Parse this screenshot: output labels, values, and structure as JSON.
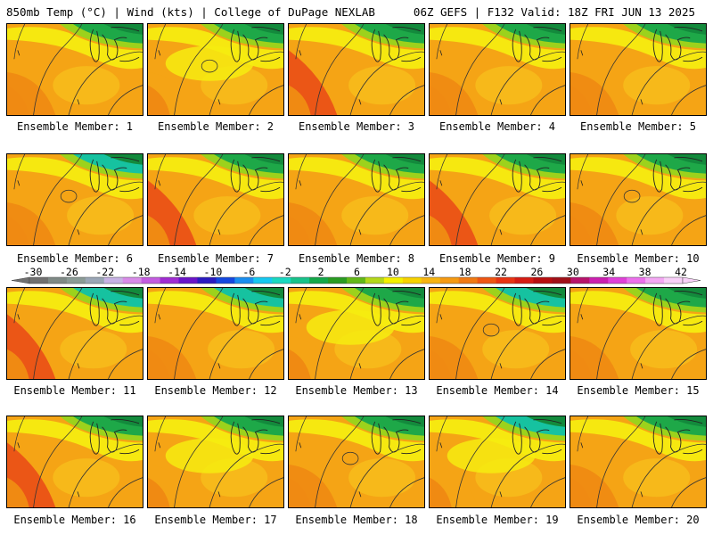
{
  "header": {
    "left": "850mb Temp (°C) | Wind (kts) | College of DuPage NEXLAB",
    "right": "06Z GEFS | F132 Valid: 18Z FRI JUN 13 2025"
  },
  "colorbar": {
    "ticks": [
      "-30",
      "-26",
      "-22",
      "-18",
      "-14",
      "-10",
      "-6",
      "-2",
      "2",
      "6",
      "10",
      "14",
      "18",
      "22",
      "26",
      "30",
      "34",
      "38",
      "42"
    ],
    "colors": [
      "#707070",
      "#7f8a86",
      "#8b9b96",
      "#9aa6b6",
      "#c7b2e4",
      "#d88be8",
      "#c35ce0",
      "#a02cd2",
      "#6a14c8",
      "#2a1bc0",
      "#1448e0",
      "#1a8ef0",
      "#16c8f0",
      "#1ad8c0",
      "#18c28a",
      "#14a84a",
      "#2a9c22",
      "#62b818",
      "#b4d81a",
      "#f4f000",
      "#f6d200",
      "#f6b410",
      "#f59a12",
      "#f07a14",
      "#ee5614",
      "#e83414",
      "#d61c14",
      "#b80e10",
      "#a01018",
      "#b8146c",
      "#cc20b0",
      "#e040d8",
      "#ec70ec",
      "#f4a8f4",
      "#f8d0f8"
    ]
  },
  "panel_colors": {
    "deep_orange": "#f08a12",
    "orange": "#f5a415",
    "light_orange": "#f8be1c",
    "yellow": "#f6ec10",
    "red": "#ea4e16",
    "green": "#1ea848",
    "dark_green": "#138a3c",
    "teal": "#16c2a0",
    "lightgreen": "#9cd21c"
  },
  "members": [
    {
      "label": "Ensemble Member: 1",
      "north": "green",
      "heat": "moderate"
    },
    {
      "label": "Ensemble Member: 2",
      "north": "green",
      "heat": "mild"
    },
    {
      "label": "Ensemble Member: 3",
      "north": "green",
      "heat": "hot"
    },
    {
      "label": "Ensemble Member: 4",
      "north": "green",
      "heat": "moderate"
    },
    {
      "label": "Ensemble Member: 5",
      "north": "green",
      "heat": "moderate"
    },
    {
      "label": "Ensemble Member: 6",
      "north": "teal",
      "heat": "moderate"
    },
    {
      "label": "Ensemble Member: 7",
      "north": "green",
      "heat": "hot"
    },
    {
      "label": "Ensemble Member: 8",
      "north": "green",
      "heat": "moderate"
    },
    {
      "label": "Ensemble Member: 9",
      "north": "green",
      "heat": "hot"
    },
    {
      "label": "Ensemble Member: 10",
      "north": "green",
      "heat": "moderate"
    },
    {
      "label": "Ensemble Member: 11",
      "north": "teal",
      "heat": "hot"
    },
    {
      "label": "Ensemble Member: 12",
      "north": "teal",
      "heat": "moderate"
    },
    {
      "label": "Ensemble Member: 13",
      "north": "green",
      "heat": "mild"
    },
    {
      "label": "Ensemble Member: 14",
      "north": "teal",
      "heat": "moderate"
    },
    {
      "label": "Ensemble Member: 15",
      "north": "green",
      "heat": "moderate"
    },
    {
      "label": "Ensemble Member: 16",
      "north": "green",
      "heat": "hot"
    },
    {
      "label": "Ensemble Member: 17",
      "north": "green",
      "heat": "mild"
    },
    {
      "label": "Ensemble Member: 18",
      "north": "green",
      "heat": "moderate"
    },
    {
      "label": "Ensemble Member: 19",
      "north": "teal",
      "heat": "mild"
    },
    {
      "label": "Ensemble Member: 20",
      "north": "green",
      "heat": "moderate"
    }
  ]
}
